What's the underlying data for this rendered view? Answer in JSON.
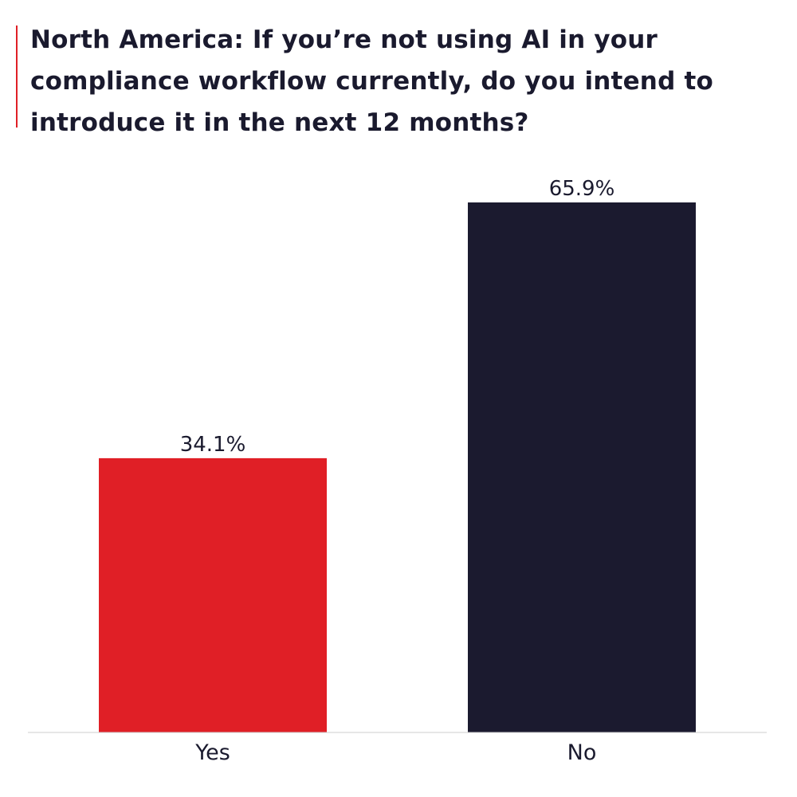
{
  "title": "North America: If you’re not using AI in your compliance workflow currently, do you intend to introduce it in the next 12 months?",
  "colors": {
    "accent": "#e01f26",
    "yes_bar": "#e01f26",
    "no_bar": "#1b1a2f",
    "axis": "#cccccc",
    "text": "#1a1a2e"
  },
  "chart_data": {
    "type": "bar",
    "categories": [
      "Yes",
      "No"
    ],
    "values": [
      34.1,
      65.9
    ],
    "value_labels": [
      "34.1%",
      "65.9%"
    ],
    "ylim": [
      0,
      65.9
    ],
    "grid": false
  }
}
